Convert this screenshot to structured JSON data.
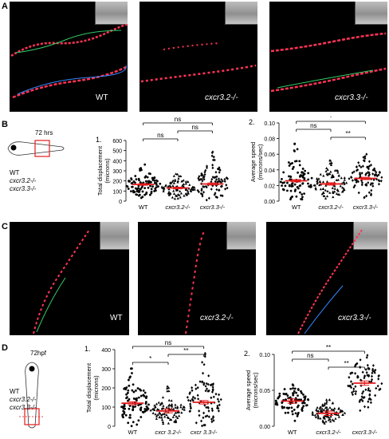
{
  "panels": {
    "A": {
      "letter": "A",
      "labels": [
        "WT",
        "cxcr3.2-/-",
        "cxcr3.3-/-"
      ]
    },
    "B": {
      "letter": "B",
      "fish_time": "72 hrs",
      "genotypes": [
        "WT",
        "cxcr3.2-/-",
        "cxcr3.3-/-"
      ]
    },
    "C": {
      "letter": "C",
      "labels": [
        "WT",
        "cxcr3.2-/-",
        "cxcr3.3-/-"
      ]
    },
    "D": {
      "letter": "D",
      "fish_time": "72hpf",
      "genotypes": [
        "WT",
        "cxcr3.2-/-",
        "cxcr3.3-/-"
      ]
    }
  },
  "chart_data": [
    {
      "id": "B1",
      "type": "scatter",
      "panel_number": "1.",
      "ylabel": "Total displacement\n(microns)",
      "categories": [
        "WT",
        "cxcr3.2-/-",
        "cxcr3.3-/-"
      ],
      "ylim": [
        0,
        600
      ],
      "yticks": [
        0,
        100,
        200,
        300,
        400,
        500,
        600
      ],
      "means": [
        165,
        130,
        170
      ],
      "sem": [
        8,
        8,
        10
      ],
      "ranges": [
        [
          20,
          370
        ],
        [
          10,
          290
        ],
        [
          10,
          530
        ]
      ],
      "markers": [
        "circle",
        "triangle",
        "diamond"
      ],
      "significance": [
        {
          "from": 0,
          "to": 2,
          "label": "ns"
        },
        {
          "from": 1,
          "to": 2,
          "label": "ns"
        },
        {
          "from": 0,
          "to": 1,
          "label": "ns"
        }
      ]
    },
    {
      "id": "B2",
      "type": "scatter",
      "panel_number": "2.",
      "ylabel": "Average speed\n(microns/sec)",
      "categories": [
        "WT",
        "cxcr3.2-/-",
        "cxcr3.3-/-"
      ],
      "ylim": [
        0,
        0.1
      ],
      "yticks": [
        "0.00",
        "0.02",
        "0.04",
        "0.06",
        "0.08",
        "0.10"
      ],
      "means": [
        0.026,
        0.022,
        0.029
      ],
      "sem": [
        0.0015,
        0.0015,
        0.0015
      ],
      "ranges": [
        [
          0.0,
          0.08
        ],
        [
          0.0,
          0.055
        ],
        [
          0.0,
          0.065
        ]
      ],
      "markers": [
        "circle",
        "triangle",
        "diamond"
      ],
      "significance": [
        {
          "from": 0,
          "to": 2,
          "label": "*"
        },
        {
          "from": 0,
          "to": 1,
          "label": "ns"
        },
        {
          "from": 1,
          "to": 2,
          "label": "**"
        }
      ]
    },
    {
      "id": "D1",
      "type": "scatter",
      "panel_number": "1.",
      "ylabel": "Total displacement\n(microns)",
      "categories": [
        "WT",
        "cxcr 3.2-/-",
        "cxcr 3.3-/-"
      ],
      "ylim": [
        0,
        400
      ],
      "yticks": [
        0,
        100,
        200,
        300,
        400
      ],
      "means": [
        120,
        80,
        125
      ],
      "sem": [
        8,
        10,
        9
      ],
      "ranges": [
        [
          0,
          310
        ],
        [
          0,
          210
        ],
        [
          0,
          390
        ]
      ],
      "markers": [
        "circle",
        "triangle",
        "diamond"
      ],
      "significance": [
        {
          "from": 0,
          "to": 2,
          "label": "ns"
        },
        {
          "from": 1,
          "to": 2,
          "label": "**"
        },
        {
          "from": 0,
          "to": 1,
          "label": "*"
        }
      ]
    },
    {
      "id": "D2",
      "type": "scatter",
      "panel_number": "2.",
      "ylabel": "Average speed\n(microns/sec)",
      "categories": [
        "WT",
        "cxcr3.2-/-",
        "cxcr3.3-/-"
      ],
      "ylim": [
        0,
        0.1
      ],
      "yticks": [
        "0.00",
        "0.05",
        "0.10"
      ],
      "means": [
        0.035,
        0.018,
        0.06
      ],
      "sem": [
        0.003,
        0.003,
        0.003
      ],
      "ranges": [
        [
          0.0,
          0.058
        ],
        [
          0.0,
          0.038
        ],
        [
          0.0,
          0.1
        ]
      ],
      "markers": [
        "circle",
        "triangle",
        "diamond"
      ],
      "significance": [
        {
          "from": 0,
          "to": 2,
          "label": "**"
        },
        {
          "from": 0,
          "to": 1,
          "label": "ns"
        },
        {
          "from": 1,
          "to": 2,
          "label": "**"
        }
      ]
    }
  ]
}
